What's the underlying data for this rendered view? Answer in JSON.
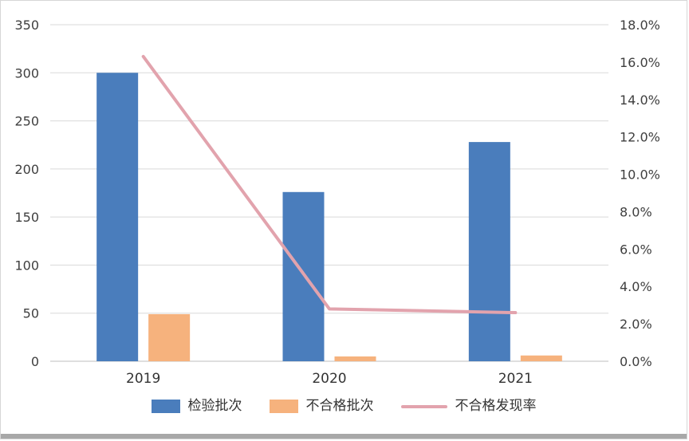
{
  "chart_data": {
    "type": "combo",
    "subtype": "bar+line",
    "categories": [
      "2019",
      "2020",
      "2021"
    ],
    "series": [
      {
        "name": "检验批次",
        "type": "bar",
        "axis": "left",
        "color": "#4a7dbc",
        "values": [
          300,
          176,
          228
        ]
      },
      {
        "name": "不合格批次",
        "type": "bar",
        "axis": "left",
        "color": "#f6b27d",
        "values": [
          49,
          5,
          6
        ]
      },
      {
        "name": "不合格发现率",
        "type": "line",
        "axis": "right",
        "unit": "%",
        "color": "#e2a3ad",
        "values": [
          16.3,
          2.8,
          2.6
        ]
      }
    ],
    "left_axis": {
      "min": 0,
      "max": 350,
      "step": 50,
      "tick_labels": [
        "0",
        "50",
        "100",
        "150",
        "200",
        "250",
        "300",
        "350"
      ]
    },
    "right_axis": {
      "min": 0,
      "max": 18,
      "step": 2,
      "tick_labels": [
        "0.0%",
        "2.0%",
        "4.0%",
        "6.0%",
        "8.0%",
        "10.0%",
        "12.0%",
        "14.0%",
        "16.0%",
        "18.0%"
      ]
    },
    "grid": true,
    "legend_position": "bottom",
    "title": ""
  },
  "legend": {
    "items": [
      {
        "label": "检验批次",
        "color": "#4a7dbc",
        "marker": "rect"
      },
      {
        "label": "不合格批次",
        "color": "#f6b27d",
        "marker": "rect"
      },
      {
        "label": "不合格发现率",
        "color": "#e2a3ad",
        "marker": "line"
      }
    ]
  },
  "colors": {
    "gridline": "#d9d9d9",
    "axis_line": "#bfbfbf",
    "tick_text": "#3f3f3f"
  }
}
